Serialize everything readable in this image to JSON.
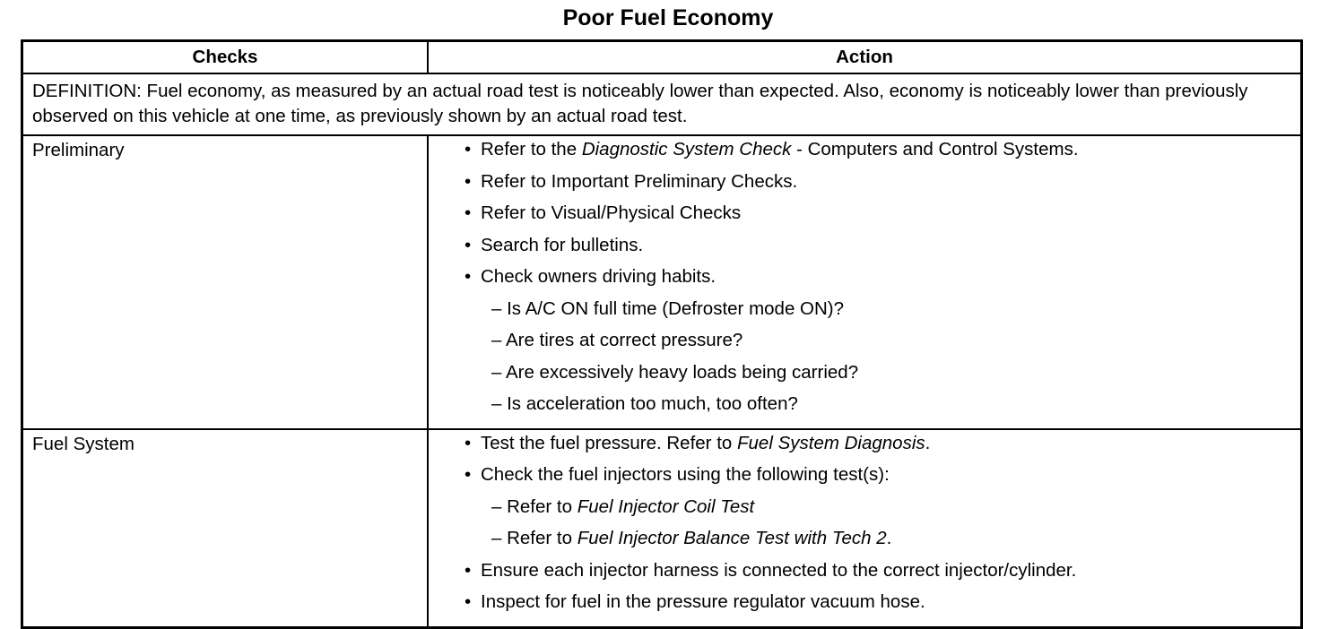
{
  "title": "Poor Fuel Economy",
  "headers": {
    "checks": "Checks",
    "action": "Action"
  },
  "definition": "DEFINITION: Fuel economy, as measured by an actual road test is noticeably lower than expected. Also, economy is noticeably lower than previously observed on this vehicle at one time, as previously shown by an actual road test.",
  "rows": [
    {
      "check": "Preliminary",
      "actions": [
        {
          "type": "bullet",
          "parts": [
            {
              "t": "Refer to the "
            },
            {
              "t": "Diagnostic System Check",
              "i": true
            },
            {
              "t": " - Computers  and  Control Systems."
            }
          ]
        },
        {
          "type": "bullet",
          "parts": [
            {
              "t": "Refer to Important Preliminary Checks."
            }
          ]
        },
        {
          "type": "bullet",
          "parts": [
            {
              "t": "Refer to Visual/Physical Checks"
            }
          ]
        },
        {
          "type": "bullet",
          "parts": [
            {
              "t": "Search for bulletins."
            }
          ]
        },
        {
          "type": "bullet",
          "parts": [
            {
              "t": "Check owners driving habits."
            }
          ]
        },
        {
          "type": "sub",
          "parts": [
            {
              "t": "– Is A/C ON full time (Defroster mode ON)?"
            }
          ]
        },
        {
          "type": "sub",
          "parts": [
            {
              "t": "– Are tires at correct pressure?"
            }
          ]
        },
        {
          "type": "sub",
          "parts": [
            {
              "t": "– Are excessively heavy loads being carried?"
            }
          ]
        },
        {
          "type": "sub",
          "parts": [
            {
              "t": "– Is acceleration too much, too often?"
            }
          ]
        }
      ]
    },
    {
      "check": "Fuel System",
      "actions": [
        {
          "type": "bullet",
          "parts": [
            {
              "t": "Test the fuel pressure. Refer to "
            },
            {
              "t": "Fuel System Diagnosis",
              "i": true
            },
            {
              "t": "."
            }
          ]
        },
        {
          "type": "bullet",
          "parts": [
            {
              "t": "Check the fuel injectors using the following test(s):"
            }
          ]
        },
        {
          "type": "sub",
          "parts": [
            {
              "t": "– Refer to "
            },
            {
              "t": "Fuel Injector Coil Test",
              "i": true
            }
          ]
        },
        {
          "type": "sub",
          "parts": [
            {
              "t": "– Refer to "
            },
            {
              "t": "Fuel Injector Balance Test with Tech 2",
              "i": true
            },
            {
              "t": "."
            }
          ]
        },
        {
          "type": "bullet",
          "parts": [
            {
              "t": "Ensure each injector harness is connected to the correct injector/cylinder."
            }
          ]
        },
        {
          "type": "bullet",
          "parts": [
            {
              "t": "Inspect for fuel in the pressure regulator vacuum hose."
            }
          ]
        }
      ]
    }
  ]
}
